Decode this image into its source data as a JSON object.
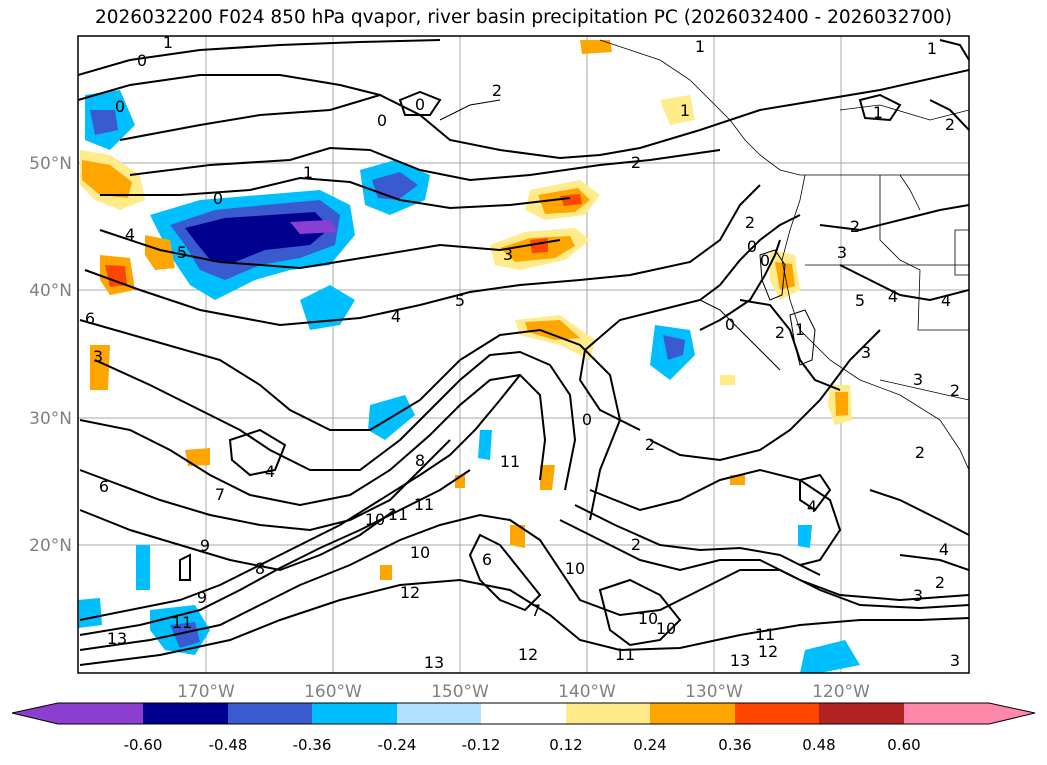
{
  "title": "2026032200 F024 850 hPa qvapor, river basin precipitation PC (2026032400 - 2026032700)",
  "map": {
    "lon_ticks": [
      "170°W",
      "160°W",
      "150°W",
      "140°W",
      "130°W",
      "120°W"
    ],
    "lat_ticks": [
      "50°N",
      "40°N",
      "30°N",
      "20°N"
    ],
    "grid": true,
    "tick_label_color": "#808080"
  },
  "contour_labels": [
    "1",
    "0",
    "0",
    "0",
    "1",
    "2",
    "1",
    "2",
    "2",
    "1",
    "2",
    "0",
    "0",
    "0",
    "1",
    "2",
    "2",
    "3",
    "5",
    "4",
    "5",
    "4",
    "6",
    "3",
    "4",
    "7",
    "6",
    "8",
    "9",
    "11",
    "10",
    "11",
    "11",
    "10",
    "11",
    "12",
    "12",
    "10",
    "10",
    "10",
    "7",
    "6",
    "8",
    "9",
    "13",
    "13",
    "11",
    "13",
    "12",
    "11",
    "2",
    "3",
    "2",
    "0",
    "3",
    "4",
    "4",
    "2",
    "5",
    "3",
    "4",
    "0",
    "1",
    "1",
    "0",
    "2",
    "3",
    "4",
    "3",
    "2"
  ],
  "colorbar": {
    "ticks": [
      "-0.60",
      "-0.48",
      "-0.36",
      "-0.24",
      "-0.12",
      "0.12",
      "0.24",
      "0.36",
      "0.48",
      "0.60"
    ],
    "under_color": "#8b3fd0",
    "over_color": "#ff88aa",
    "bin_colors": [
      "#8b3fd0",
      "#000090",
      "#3a5ad0",
      "#00bfff",
      "#b0e2ff",
      "#ffffff",
      "#ffeb8a",
      "#ffa500",
      "#ff4500",
      "#b22222",
      "#ff88aa"
    ]
  }
}
